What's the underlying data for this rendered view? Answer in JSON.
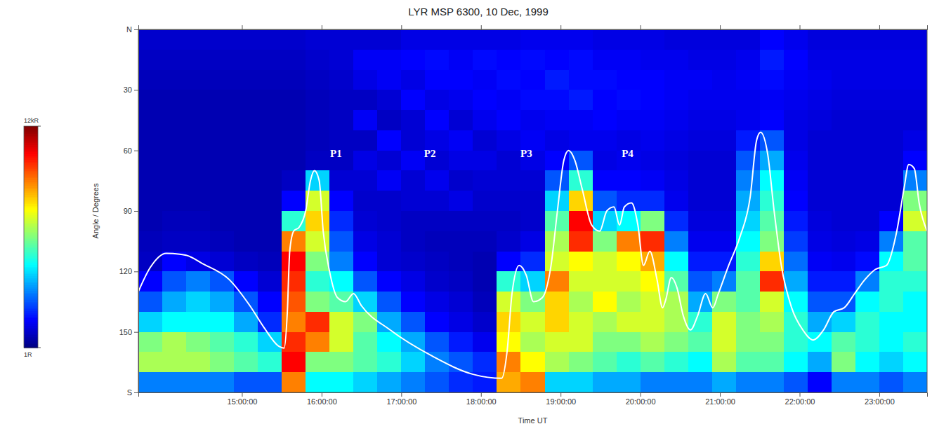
{
  "chart_data": {
    "type": "heatmap",
    "title": "LYR MSP 6300, 10 Dec, 1999",
    "xlabel": "Time UT",
    "ylabel": "Angle / Degrees",
    "xlim": [
      13.7,
      23.6
    ],
    "ylim": [
      0,
      180
    ],
    "xticks": [
      {
        "value": 15,
        "label": "15:00:00"
      },
      {
        "value": 16,
        "label": "16:00:00"
      },
      {
        "value": 17,
        "label": "17:00:00"
      },
      {
        "value": 18,
        "label": "18:00:00"
      },
      {
        "value": 19,
        "label": "19:00:00"
      },
      {
        "value": 20,
        "label": "20:00:00"
      },
      {
        "value": 21,
        "label": "21:00:00"
      },
      {
        "value": 22,
        "label": "22:00:00"
      },
      {
        "value": 23,
        "label": "23:00:00"
      }
    ],
    "yticks": [
      {
        "value": 0,
        "label": "N"
      },
      30,
      60,
      90,
      120,
      150,
      {
        "value": 180,
        "label": "S"
      }
    ],
    "x": [
      13.85,
      14.15,
      14.45,
      14.75,
      15.05,
      15.35,
      15.65,
      15.95,
      16.25,
      16.55,
      16.85,
      17.15,
      17.45,
      17.75,
      18.05,
      18.35,
      18.65,
      18.95,
      19.25,
      19.55,
      19.85,
      20.15,
      20.45,
      20.75,
      21.05,
      21.35,
      21.65,
      21.95,
      22.25,
      22.55,
      22.85,
      23.15,
      23.45
    ],
    "y": [
      5,
      15,
      25,
      35,
      45,
      55,
      65,
      75,
      85,
      95,
      105,
      115,
      125,
      135,
      145,
      155,
      165,
      175
    ],
    "values": [
      [
        0.9,
        0.8,
        0.7,
        0.6,
        0.6,
        0.6,
        0.6,
        0.6,
        0.6,
        0.6,
        0.7,
        0.8,
        1.5,
        2.5,
        4,
        6,
        6.5,
        3
      ],
      [
        0.9,
        0.8,
        0.7,
        0.6,
        0.6,
        0.6,
        0.6,
        0.6,
        0.6,
        0.7,
        0.8,
        1.5,
        2.5,
        3.5,
        4.5,
        6.5,
        6.5,
        3
      ],
      [
        0.9,
        0.8,
        0.7,
        0.6,
        0.6,
        0.6,
        0.6,
        0.6,
        0.6,
        0.7,
        0.8,
        1.2,
        3,
        4,
        4.5,
        6,
        6.5,
        3
      ],
      [
        0.9,
        0.8,
        0.7,
        0.6,
        0.6,
        0.6,
        0.6,
        0.6,
        0.6,
        0.6,
        0.7,
        1,
        2.5,
        3.5,
        4.5,
        5.5,
        6,
        3
      ],
      [
        0.9,
        0.8,
        0.7,
        0.6,
        0.6,
        0.6,
        0.6,
        0.6,
        0.6,
        0.6,
        0.6,
        0.8,
        1.5,
        2.5,
        3.5,
        5,
        5.5,
        2.5
      ],
      [
        0.9,
        0.8,
        0.7,
        0.6,
        0.6,
        0.6,
        0.6,
        0.6,
        0.6,
        0.6,
        0.6,
        0.7,
        1,
        1.5,
        2,
        4,
        5,
        2.5
      ],
      [
        0.9,
        0.8,
        0.7,
        0.6,
        0.6,
        0.6,
        0.6,
        0.8,
        1.5,
        5,
        9,
        10.5,
        10,
        9.5,
        9,
        10,
        10.5,
        9
      ],
      [
        1,
        0.9,
        0.8,
        0.7,
        0.7,
        0.7,
        0.8,
        4,
        7,
        8,
        7,
        6,
        5,
        6,
        10,
        9,
        6,
        4.5
      ],
      [
        1,
        1,
        0.9,
        0.8,
        0.8,
        0.8,
        0.8,
        1,
        1.5,
        2,
        2.5,
        3,
        4.5,
        5.5,
        7,
        7,
        6,
        4.5
      ],
      [
        1,
        1.4,
        1.2,
        0.8,
        1.4,
        0.8,
        1.2,
        1,
        0.9,
        1,
        1.2,
        1.5,
        2.5,
        4,
        6,
        5.5,
        5.5,
        4
      ],
      [
        1,
        1.4,
        1.4,
        1,
        0.8,
        1.5,
        1,
        1.4,
        0.9,
        0.9,
        1,
        1,
        1.5,
        2.5,
        3.5,
        4.5,
        5,
        3.5
      ],
      [
        1.2,
        1.5,
        1.2,
        1.5,
        1,
        1,
        1.4,
        1,
        1,
        0.8,
        0.8,
        0.9,
        1.2,
        1.5,
        2.5,
        3.5,
        4,
        3
      ],
      [
        1.2,
        1.6,
        1.5,
        1.2,
        1.5,
        1.2,
        1,
        1.3,
        1,
        0.8,
        0.7,
        0.8,
        0.9,
        1.2,
        1.5,
        2.5,
        3,
        2.5
      ],
      [
        1.2,
        1.4,
        1.5,
        1.3,
        1,
        1.4,
        1.2,
        0.9,
        1.2,
        0.8,
        0.7,
        0.7,
        0.8,
        1,
        1.2,
        1.8,
        2.5,
        2
      ],
      [
        1.2,
        1.6,
        1.4,
        1.5,
        1.3,
        1,
        1.2,
        1,
        0.9,
        0.8,
        0.7,
        0.6,
        0.6,
        0.7,
        0.9,
        1.3,
        2,
        1.8
      ],
      [
        1.2,
        1.5,
        1.6,
        1.4,
        1.5,
        1.2,
        1,
        1,
        0.9,
        0.8,
        0.9,
        1.5,
        5,
        7,
        8,
        7.5,
        9,
        8.5
      ],
      [
        1.3,
        1.6,
        1.5,
        1.6,
        1.3,
        1.4,
        1.2,
        1,
        0.9,
        0.9,
        1.2,
        2,
        4,
        6,
        7,
        6.5,
        7.5,
        9
      ],
      [
        1.3,
        1.5,
        1.8,
        1.6,
        1.4,
        1.2,
        1.5,
        2.5,
        4,
        5.5,
        6.5,
        7,
        9,
        8,
        8,
        7,
        6.5,
        4
      ],
      [
        1.3,
        1.6,
        1.6,
        1.8,
        1.4,
        1.3,
        2.5,
        5,
        8,
        10.5,
        10,
        7.5,
        7,
        6.5,
        7,
        7,
        6,
        4
      ],
      [
        1.2,
        1.4,
        1.6,
        1.5,
        1.5,
        1.3,
        1.2,
        1.5,
        2.5,
        4,
        6,
        7,
        7,
        7.5,
        6.5,
        6,
        5.5,
        3.5
      ],
      [
        1.2,
        1.4,
        1.5,
        1.6,
        1.4,
        1.2,
        1.3,
        1.5,
        2,
        4.5,
        9,
        7.5,
        7,
        6.5,
        7,
        6,
        5,
        3.5
      ],
      [
        1.2,
        1.3,
        1.5,
        1.5,
        1.4,
        1.3,
        1.2,
        1.4,
        2,
        6,
        10,
        8.5,
        7.5,
        7,
        7,
        6.5,
        5.5,
        3
      ],
      [
        1.1,
        1.3,
        1.4,
        1.4,
        1.3,
        1.2,
        1.1,
        1.2,
        1.3,
        2,
        3,
        4.5,
        5.5,
        6.5,
        6.5,
        6,
        5,
        3
      ],
      [
        1.1,
        1.2,
        1.4,
        1.3,
        1.2,
        1.1,
        1,
        1,
        1,
        1.1,
        1.3,
        1.8,
        2.5,
        3.5,
        5,
        5.5,
        4.5,
        3
      ],
      [
        1.1,
        1.2,
        1.3,
        1.3,
        1.2,
        1.1,
        1,
        1,
        1,
        1.1,
        1.3,
        1.8,
        3,
        6,
        7,
        7,
        6.5,
        3.5
      ],
      [
        1.1,
        1.3,
        1.4,
        1.3,
        1.3,
        1.8,
        2.5,
        3,
        3.5,
        4,
        4.5,
        5,
        5.5,
        5.5,
        6,
        6,
        5.5,
        3
      ],
      [
        1.5,
        1.8,
        1.6,
        1.4,
        1.5,
        2.5,
        3.5,
        4.5,
        5,
        5.5,
        6,
        8,
        10,
        7,
        6.5,
        6,
        5.5,
        3
      ],
      [
        1.3,
        1.5,
        1.4,
        1.3,
        1.2,
        1.2,
        1.3,
        1.4,
        1.5,
        1.8,
        2.2,
        2.8,
        3.5,
        4.5,
        5,
        5,
        4.5,
        2.5
      ],
      [
        1.1,
        1.2,
        1.3,
        1.2,
        1.1,
        1,
        1,
        1,
        1,
        1.1,
        1.2,
        1.4,
        1.8,
        2.5,
        3.5,
        4.5,
        3.5,
        1.5
      ],
      [
        1.1,
        1.2,
        1.2,
        1.1,
        1,
        1,
        1,
        1,
        1,
        1,
        1.1,
        1.3,
        1.8,
        2.5,
        4,
        5.5,
        6,
        3
      ],
      [
        1.1,
        1.2,
        1.2,
        1.1,
        1,
        1,
        1,
        1,
        1,
        1,
        1.2,
        1.6,
        3,
        4.5,
        5,
        5,
        4.5,
        3
      ],
      [
        1.1,
        1.2,
        1.2,
        1.1,
        1,
        1,
        1,
        1,
        1,
        1.5,
        3,
        4.5,
        5,
        5,
        4.5,
        4.5,
        4,
        2.5
      ],
      [
        1.1,
        1.2,
        1.2,
        1.1,
        1,
        1.2,
        1.5,
        3,
        6,
        7,
        5.5,
        5.5,
        5,
        4.5,
        4.5,
        5,
        4.5,
        3
      ]
    ],
    "colorbar": {
      "range": [
        0.001,
        12
      ],
      "ticks": [
        {
          "value": 0.001,
          "label": "1R"
        },
        {
          "value": 12,
          "label": "12kR"
        }
      ]
    },
    "contour": {
      "color": "#ffffff",
      "x": [
        13.7,
        13.85,
        14.05,
        14.3,
        14.5,
        14.84,
        15.1,
        15.28,
        15.46,
        15.53,
        15.57,
        15.6,
        15.65,
        15.72,
        15.8,
        15.86,
        15.91,
        15.97,
        16.02,
        16.1,
        16.2,
        16.3,
        16.4,
        16.5,
        16.86,
        17.39,
        17.9,
        18.26,
        18.33,
        18.39,
        18.48,
        18.57,
        18.66,
        18.77,
        18.88,
        18.96,
        19.04,
        19.1,
        19.18,
        19.27,
        19.39,
        19.49,
        19.58,
        19.67,
        19.74,
        19.8,
        19.89,
        19.97,
        20.04,
        20.12,
        20.21,
        20.28,
        20.32,
        20.39,
        20.46,
        20.54,
        20.63,
        20.72,
        20.82,
        20.91,
        20.98,
        21.11,
        21.25,
        21.38,
        21.46,
        21.51,
        21.6,
        21.68,
        21.77,
        21.9,
        22.04,
        22.17,
        22.3,
        22.43,
        22.56,
        22.69,
        22.82,
        22.95,
        23.09,
        23.22,
        23.31,
        23.37,
        23.44,
        23.5,
        23.6
      ],
      "y": [
        130,
        118,
        111,
        112,
        116,
        124,
        137,
        148,
        157,
        158,
        140,
        110,
        100,
        98,
        90,
        75,
        70,
        75,
        100,
        120,
        133,
        135,
        131,
        137,
        149,
        162,
        171,
        173,
        159,
        131,
        117,
        122,
        135,
        133,
        117,
        90,
        65,
        60,
        65,
        79,
        97,
        100,
        90,
        88,
        97,
        88,
        86,
        97,
        117,
        110,
        124,
        138,
        134,
        123,
        128,
        142,
        149,
        142,
        131,
        138,
        131,
        117,
        103,
        83,
        55,
        51,
        62,
        90,
        117,
        138,
        149,
        154,
        149,
        140,
        138,
        131,
        124,
        119,
        117,
        100,
        79,
        67,
        69,
        86,
        100
      ]
    },
    "annotations": [
      {
        "text": "P1",
        "x": 16.18,
        "y": 62
      },
      {
        "text": "P2",
        "x": 17.36,
        "y": 62
      },
      {
        "text": "P3",
        "x": 18.57,
        "y": 62
      },
      {
        "text": "P4",
        "x": 19.84,
        "y": 62
      }
    ]
  }
}
